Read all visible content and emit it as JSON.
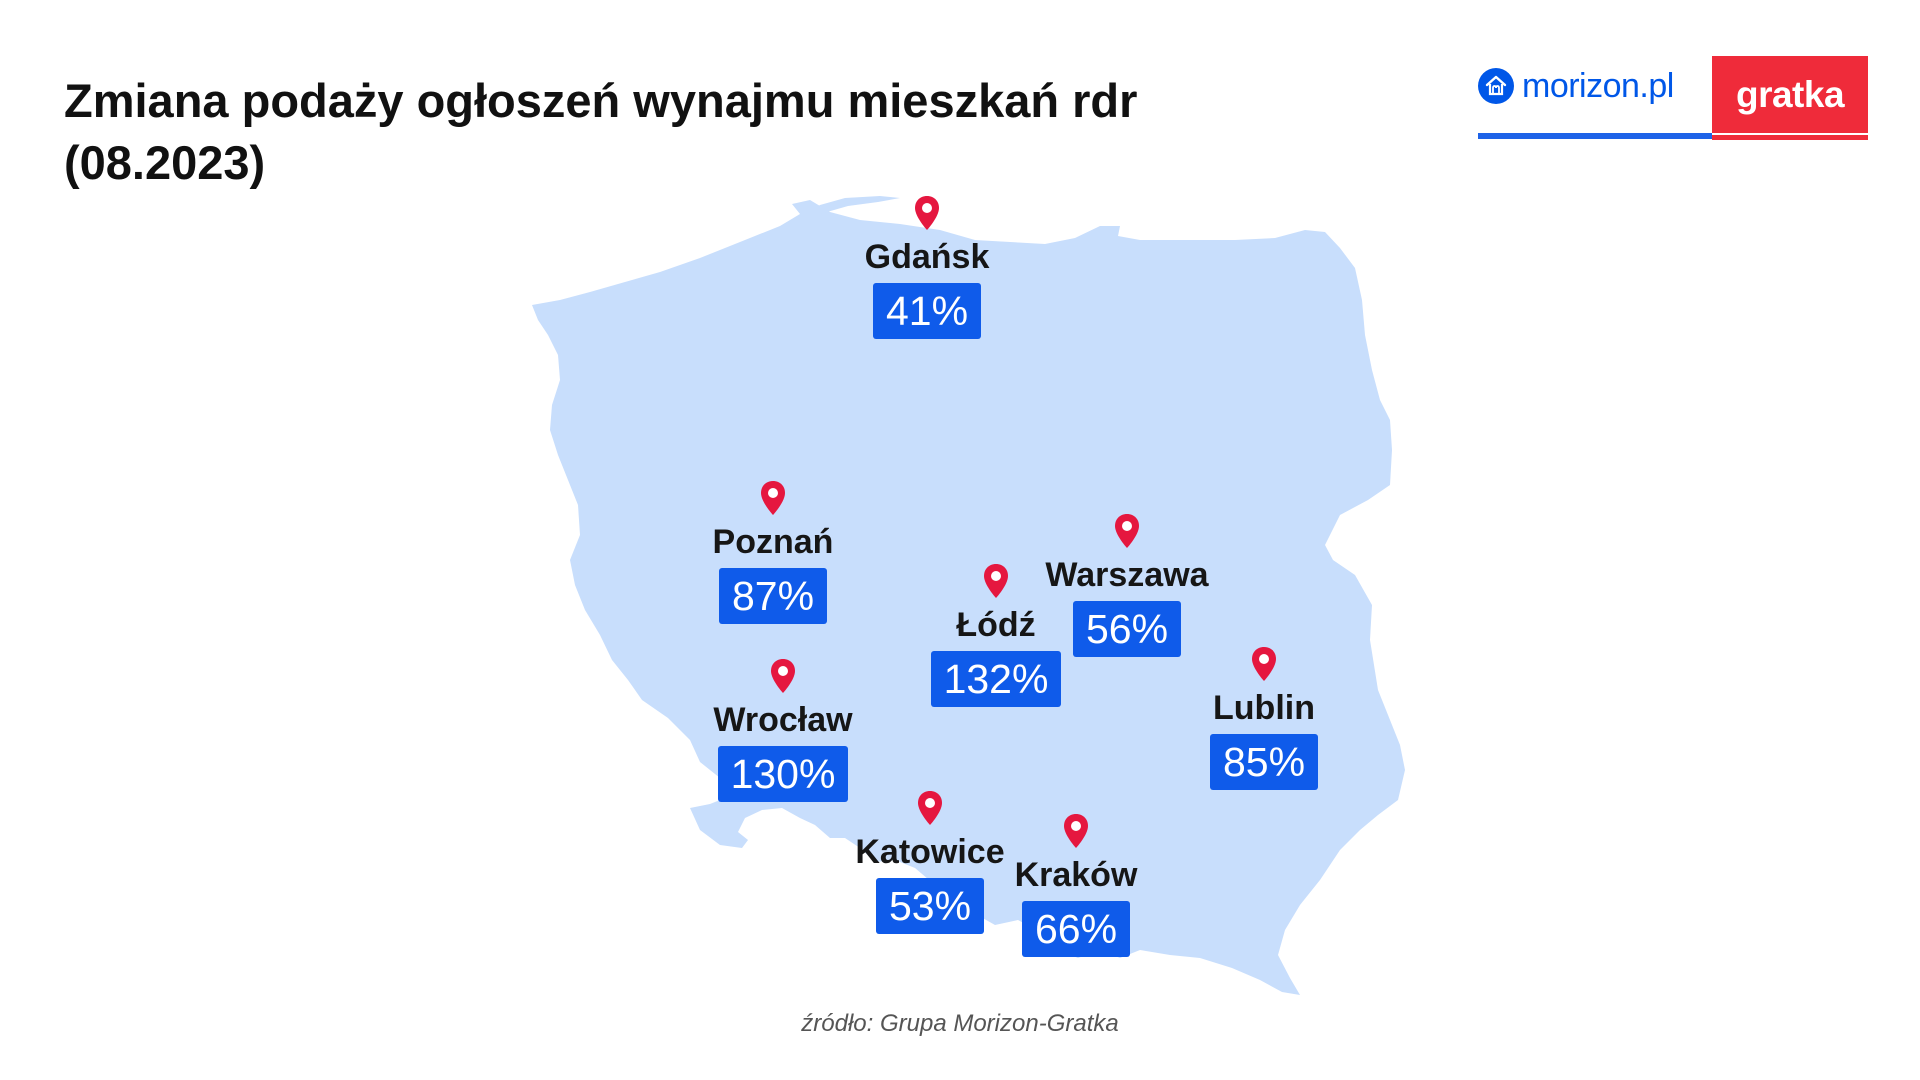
{
  "title_line1": "Zmiana podaży ogłoszeń wynajmu mieszkań rdr",
  "title_line2": "(08.2023)",
  "logos": {
    "morizon": "morizon.pl",
    "gratka": "gratka"
  },
  "colors": {
    "map_fill": "#c8defc",
    "badge": "#0f5bea",
    "pin": "#e5173f",
    "morizon_blue": "#0057e8",
    "gratka_red": "#ef2b3a"
  },
  "cities": [
    {
      "name": "Gdańsk",
      "value": "41%"
    },
    {
      "name": "Poznań",
      "value": "87%"
    },
    {
      "name": "Warszawa",
      "value": "56%"
    },
    {
      "name": "Łódź",
      "value": "132%"
    },
    {
      "name": "Lublin",
      "value": "85%"
    },
    {
      "name": "Wrocław",
      "value": "130%"
    },
    {
      "name": "Katowice",
      "value": "53%"
    },
    {
      "name": "Kraków",
      "value": "66%"
    }
  ],
  "source": "źródło: Grupa Morizon-Gratka"
}
